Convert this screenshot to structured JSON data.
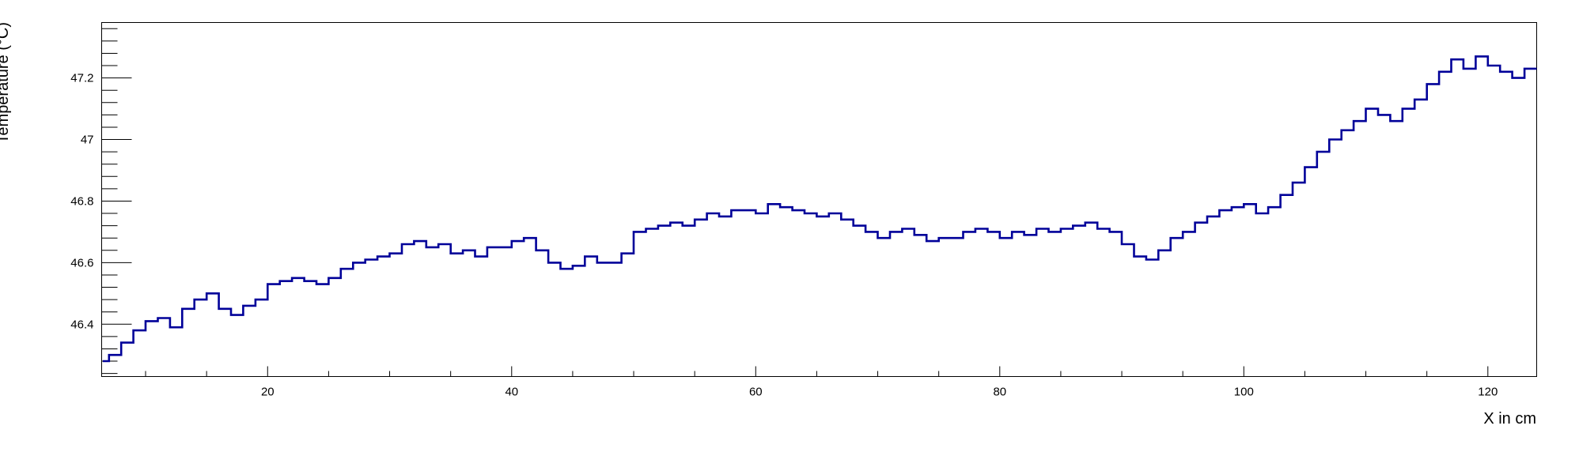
{
  "chart_data": {
    "type": "line",
    "style": "step",
    "xlabel": "X in cm",
    "ylabel": "Temperature (°C)",
    "xlim": [
      6.4,
      124
    ],
    "ylim": [
      46.23,
      47.38
    ],
    "xticks": [
      20,
      40,
      60,
      80,
      100,
      120
    ],
    "yticks": [
      46.4,
      46.6,
      46.8,
      47,
      47.2
    ],
    "xtick_labels": [
      "20",
      "40",
      "60",
      "80",
      "100",
      "120"
    ],
    "ytick_labels": [
      "46.4",
      "46.6",
      "46.8",
      "47",
      "47.2"
    ],
    "grid": false,
    "legend": "none",
    "line_color": "#000099",
    "x": [
      6.5,
      7,
      8,
      9,
      10,
      11,
      12,
      13,
      14,
      15,
      16,
      17,
      18,
      19,
      20,
      21,
      22,
      23,
      24,
      25,
      26,
      27,
      28,
      29,
      30,
      31,
      32,
      33,
      34,
      35,
      36,
      37,
      38,
      39,
      40,
      41,
      42,
      43,
      44,
      45,
      46,
      47,
      48,
      49,
      50,
      51,
      52,
      53,
      54,
      55,
      56,
      57,
      58,
      59,
      60,
      61,
      62,
      63,
      64,
      65,
      66,
      67,
      68,
      69,
      70,
      71,
      72,
      73,
      74,
      75,
      76,
      77,
      78,
      79,
      80,
      81,
      82,
      83,
      84,
      85,
      86,
      87,
      88,
      89,
      90,
      91,
      92,
      93,
      94,
      95,
      96,
      97,
      98,
      99,
      100,
      101,
      102,
      103,
      104,
      105,
      106,
      107,
      108,
      109,
      110,
      111,
      112,
      113,
      114,
      115,
      116,
      117,
      118,
      119,
      120,
      121,
      122,
      123
    ],
    "y": [
      46.28,
      46.3,
      46.34,
      46.38,
      46.41,
      46.42,
      46.39,
      46.45,
      46.48,
      46.5,
      46.45,
      46.43,
      46.46,
      46.48,
      46.53,
      46.54,
      46.55,
      46.54,
      46.53,
      46.55,
      46.58,
      46.6,
      46.61,
      46.62,
      46.63,
      46.66,
      46.67,
      46.65,
      46.66,
      46.63,
      46.64,
      46.62,
      46.65,
      46.65,
      46.67,
      46.68,
      46.64,
      46.6,
      46.58,
      46.59,
      46.62,
      46.6,
      46.6,
      46.63,
      46.7,
      46.71,
      46.72,
      46.73,
      46.72,
      46.74,
      46.76,
      46.75,
      46.77,
      46.77,
      46.76,
      46.79,
      46.78,
      46.77,
      46.76,
      46.75,
      46.76,
      46.74,
      46.72,
      46.7,
      46.68,
      46.7,
      46.71,
      46.69,
      46.67,
      46.68,
      46.68,
      46.7,
      46.71,
      46.7,
      46.68,
      46.7,
      46.69,
      46.71,
      46.7,
      46.71,
      46.72,
      46.73,
      46.71,
      46.7,
      46.66,
      46.62,
      46.61,
      46.64,
      46.68,
      46.7,
      46.73,
      46.75,
      46.77,
      46.78,
      46.79,
      46.76,
      46.78,
      46.82,
      46.86,
      46.91,
      46.96,
      47.0,
      47.03,
      47.06,
      47.1,
      47.08,
      47.06,
      47.1,
      47.13,
      47.18,
      47.22,
      47.26,
      47.23,
      47.27,
      47.24,
      47.22,
      47.2,
      47.23
    ]
  }
}
